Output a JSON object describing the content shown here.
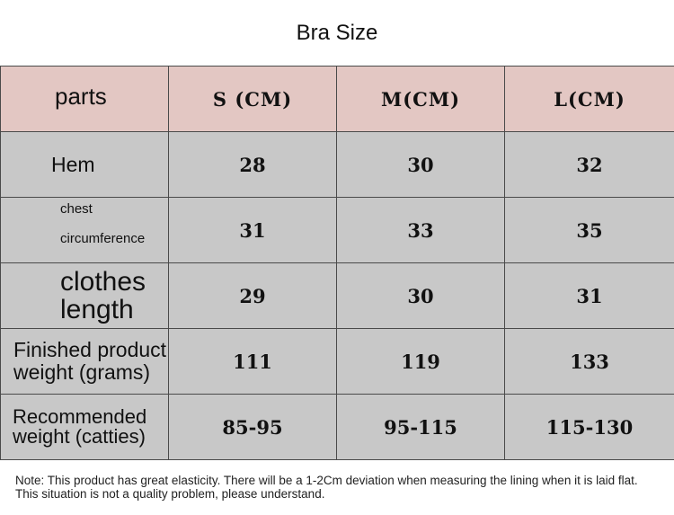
{
  "title": "Bra Size",
  "headers": [
    "parts",
    "S (CM)",
    "M(CM)",
    "L(CM)"
  ],
  "rows": [
    {
      "label": "Hem",
      "values": [
        "28",
        "30",
        "32"
      ]
    },
    {
      "label_l1": "chest",
      "label_l2": "circumference",
      "values": [
        "31",
        "33",
        "35"
      ]
    },
    {
      "label_l1": "clothes",
      "label_l2": "length",
      "values": [
        "29",
        "30",
        "31"
      ]
    },
    {
      "label_l1": "Finished product",
      "label_l2": "weight (grams)",
      "values": [
        "111",
        "119",
        "133"
      ]
    },
    {
      "label_l1": "Recommended",
      "label_l2": "weight (catties)",
      "values": [
        "85-95",
        "95-115",
        "115-130"
      ]
    }
  ],
  "note": "Note: This product has great elasticity. There will be a 1-2Cm deviation when measuring the lining when it is laid flat. This situation is not a quality problem, please understand.",
  "colors": {
    "header_bg": "#e3c7c3",
    "row_bg": "#c8c8c8",
    "border": "#4a4a4a"
  }
}
